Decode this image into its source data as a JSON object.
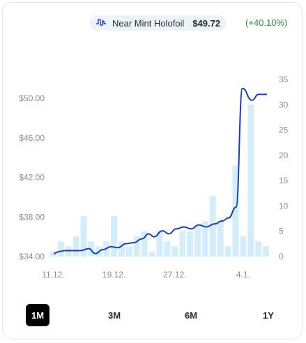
{
  "header": {
    "variant": "Near Mint Holofoil",
    "price": "$49.72",
    "change": "(+40.10%)",
    "variant_icon": "price-trend-icon",
    "change_color": "#2e8b3d"
  },
  "ranges": [
    {
      "label": "1M",
      "active": true
    },
    {
      "label": "3M",
      "active": false
    },
    {
      "label": "6M",
      "active": false
    },
    {
      "label": "1Y",
      "active": false
    }
  ],
  "chart_data": {
    "type": "line",
    "title": "",
    "x_tick_labels": [
      "11.12.",
      "19.12.",
      "27.12.",
      "4.1."
    ],
    "x_tick_index": [
      0,
      8,
      16,
      25
    ],
    "y_left": {
      "ticks": [
        "$34.00",
        "$38.00",
        "$42.00",
        "$46.00",
        "$50.00"
      ],
      "range": [
        34,
        50
      ]
    },
    "y_right": {
      "ticks": [
        "0",
        "5",
        "10",
        "15",
        "20",
        "25",
        "30",
        "35"
      ],
      "range": [
        0,
        35
      ]
    },
    "price_line_color": "#1a3fb5",
    "volume_bar_color": "#d3edfb",
    "series": [
      {
        "role": "price",
        "axis": "left",
        "values": [
          34.3,
          34.5,
          34.6,
          34.6,
          34.6,
          34.8,
          34.3,
          34.7,
          35.0,
          34.9,
          35.3,
          35.4,
          35.8,
          36.3,
          36.0,
          36.6,
          36.3,
          36.8,
          37.0,
          36.8,
          37.2,
          37.0,
          37.3,
          37.6,
          37.9,
          39.0,
          51.0,
          49.8,
          50.4,
          50.4
        ],
        "x_fraction": [
          0,
          0.025,
          0.05,
          0.09,
          0.125,
          0.165,
          0.195,
          0.23,
          0.27,
          0.3,
          0.34,
          0.375,
          0.415,
          0.445,
          0.47,
          0.51,
          0.54,
          0.575,
          0.61,
          0.645,
          0.68,
          0.715,
          0.755,
          0.79,
          0.82,
          0.855,
          0.885,
          0.93,
          0.96,
          1
        ]
      },
      {
        "role": "volume",
        "axis": "right",
        "values": [
          1,
          3,
          2,
          4,
          8,
          3,
          2,
          3,
          8,
          3,
          2,
          4,
          5,
          1,
          5,
          3,
          2,
          5,
          5,
          6,
          7,
          12,
          7,
          2,
          18,
          4,
          30,
          3,
          2
        ]
      }
    ]
  }
}
